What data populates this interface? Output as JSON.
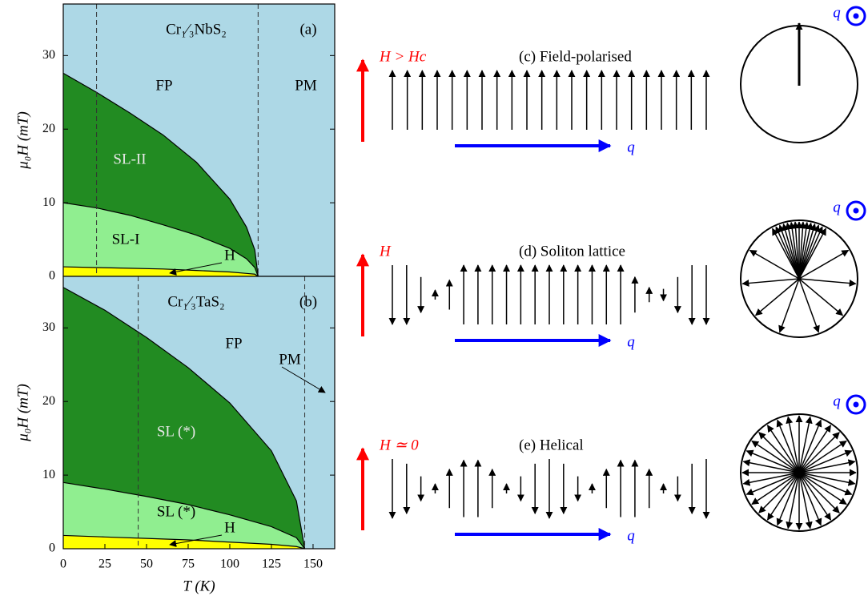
{
  "chart_data": [
    {
      "type": "area",
      "title": "Cr₁⁄₃NbS₂",
      "panel": "(a)",
      "ylabel": "μ₀H (mT)",
      "x": [
        0,
        20,
        40,
        60,
        80,
        100,
        110,
        115,
        117
      ],
      "series": [
        {
          "color": "#000000",
          "fill": "#228b22",
          "values": [
            27.6,
            25,
            22.2,
            19.2,
            15.5,
            10.5,
            6.7,
            3.6,
            0
          ]
        },
        {
          "color": "#000000",
          "fill": "#90ee90",
          "values": [
            10,
            9.3,
            8.3,
            7.0,
            5.6,
            3.8,
            2.4,
            1.2,
            0
          ]
        },
        {
          "color": "#000000",
          "fill": "#ffff00",
          "values": [
            1.3,
            1.2,
            1.1,
            1.0,
            0.8,
            0.6,
            0.4,
            0.3,
            0
          ]
        }
      ],
      "background": "#add8e6",
      "dashed": [
        20,
        117
      ],
      "annotations": [
        "FP",
        "PM",
        "SL-II",
        "SL-I",
        "H"
      ],
      "xlim": [
        0,
        163
      ],
      "ylim": [
        0,
        37
      ],
      "yticks": [
        0,
        10,
        20,
        30
      ]
    },
    {
      "type": "area",
      "title": "Cr₁⁄₃TaS₂",
      "panel": "(b)",
      "ylabel": "μ₀H (mT)",
      "xlabel": "T (K)",
      "x": [
        0,
        25,
        50,
        75,
        100,
        125,
        140,
        145
      ],
      "series": [
        {
          "color": "#000000",
          "fill": "#228b22",
          "values": [
            35.5,
            32.4,
            28.7,
            24.6,
            19.8,
            13.3,
            6.5,
            0
          ]
        },
        {
          "color": "#000000",
          "fill": "#90ee90",
          "values": [
            9,
            8.1,
            7.1,
            6.0,
            4.6,
            3.0,
            1.5,
            0
          ]
        },
        {
          "color": "#000000",
          "fill": "#ffff00",
          "values": [
            1.8,
            1.6,
            1.4,
            1.2,
            0.9,
            0.6,
            0.3,
            0
          ]
        }
      ],
      "background": "#add8e6",
      "dashed": [
        45,
        145
      ],
      "annotations": [
        "FP",
        "PM",
        "SL (*)",
        "SL (*)",
        "H"
      ],
      "xlim": [
        0,
        163
      ],
      "ylim": [
        0,
        37
      ],
      "yticks": [
        0,
        10,
        20,
        30
      ],
      "xticks": [
        0,
        25,
        50,
        75,
        100,
        125,
        150
      ]
    }
  ],
  "panels": [
    {
      "label": "(c) Field-polarised",
      "field": "H > Hc",
      "q": "q",
      "q_out": "q"
    },
    {
      "label": "(d) Soliton lattice",
      "field": "H",
      "q": "q",
      "q_out": "q"
    },
    {
      "label": "(e) Helical",
      "field": "H ≃ 0",
      "q": "q",
      "q_out": "q"
    }
  ]
}
